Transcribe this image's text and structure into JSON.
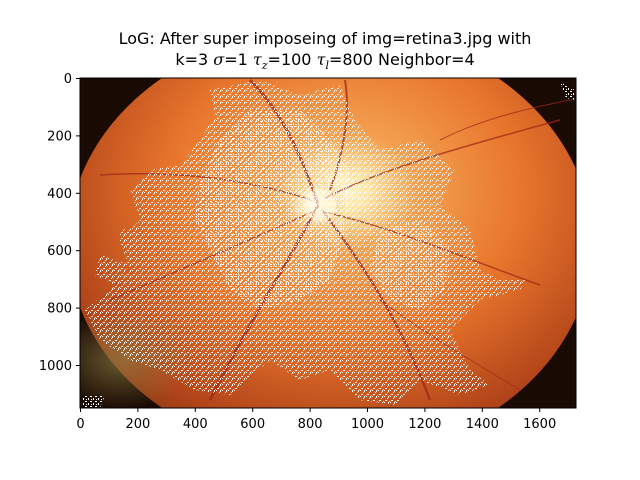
{
  "figure": {
    "title_line1": "LoG: After super imposeing of img=retina3.jpg with",
    "title_line2_parts": {
      "k": "k=3",
      "sigma_sym": "σ",
      "sigma_val": "=1",
      "tau": "τ",
      "tau_z_sub": "z",
      "tau_z_val": "=100",
      "tau_l_sub": "l",
      "tau_l_val": "=800",
      "neighbor": "Neighbor=4"
    }
  },
  "image": {
    "description_colors": {
      "fundus_center": "#fde3a0",
      "fundus_mid": "#e8752c",
      "fundus_outer": "#b2451a",
      "fundus_edge": "#5a2a10",
      "overlay": "#ffffff",
      "vessel": "#a0281a"
    }
  },
  "axes": {
    "x_ticks": [
      "0",
      "200",
      "400",
      "600",
      "800",
      "1000",
      "1200",
      "1400",
      "1600"
    ],
    "y_ticks": [
      "0",
      "200",
      "400",
      "600",
      "800",
      "1000"
    ],
    "x_range": [
      0,
      1727
    ],
    "y_range": [
      1150,
      0
    ]
  }
}
